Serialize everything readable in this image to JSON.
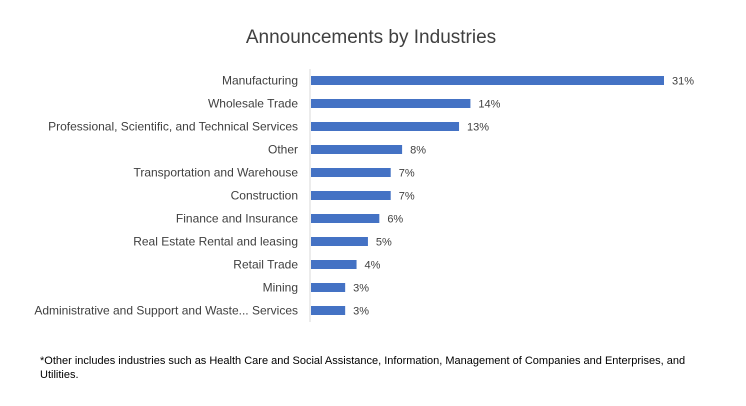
{
  "chart_data": {
    "type": "bar",
    "orientation": "horizontal",
    "title": "Announcements by Industries",
    "categories": [
      "Manufacturing",
      "Wholesale Trade",
      "Professional, Scientific, and Technical Services",
      "Other",
      "Transportation and Warehouse",
      "Construction",
      "Finance and Insurance",
      "Real Estate Rental and leasing",
      "Retail Trade",
      "Mining",
      "Administrative and Support and Waste... Services"
    ],
    "values": [
      31,
      14,
      13,
      8,
      7,
      7,
      6,
      5,
      4,
      3,
      3
    ],
    "value_labels": [
      "31%",
      "14%",
      "13%",
      "8%",
      "7%",
      "7%",
      "6%",
      "5%",
      "4%",
      "3%",
      "3%"
    ],
    "value_unit": "%",
    "bar_color": "#4472C4",
    "axis_line_color": "#D9D9D9",
    "grid": false,
    "legend": "none"
  },
  "footnote": "*Other includes industries such as Health Care and Social Assistance, Information, Management of Companies and Enterprises, and Utilities."
}
